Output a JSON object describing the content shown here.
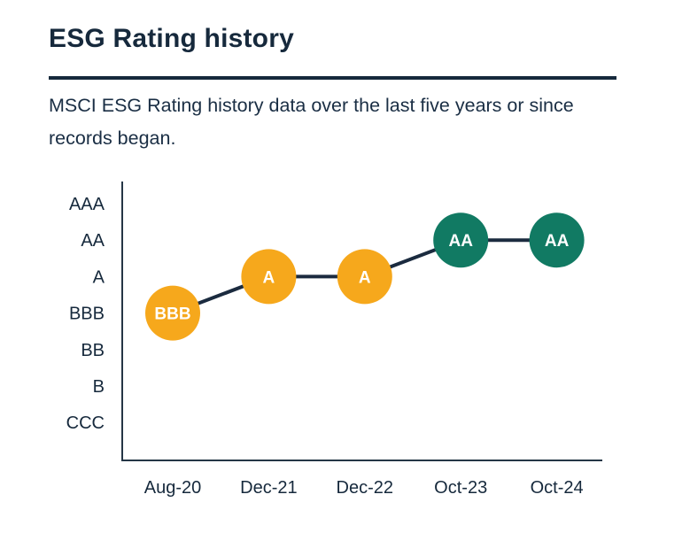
{
  "header": {
    "title": "ESG Rating history"
  },
  "subtitle": {
    "line1": "MSCI ESG Rating history data over the last five years or since",
    "line2": "records began.",
    "full_text": "MSCI ESG Rating history data over the last five years or since records began."
  },
  "colors": {
    "navy_text": "#16293C",
    "axis": "#253646",
    "line": "#1B2B3F",
    "yellow": "#F6A81C",
    "teal": "#117A63",
    "point_label": "#FFFFFF"
  },
  "chart_data": {
    "type": "line",
    "title": "",
    "xlabel": "",
    "ylabel": "",
    "grid": false,
    "legend": false,
    "categories": [
      "Aug-20",
      "Dec-21",
      "Dec-22",
      "Oct-23",
      "Oct-24"
    ],
    "y_categories_top_to_bottom": [
      "AAA",
      "AA",
      "A",
      "BBB",
      "BB",
      "B",
      "CCC"
    ],
    "series": [
      {
        "name": "MSCI ESG Rating",
        "values": [
          "BBB",
          "A",
          "A",
          "AA",
          "AA"
        ]
      }
    ],
    "points": [
      {
        "x": "Aug-20",
        "rating": "BBB",
        "color": "#F6A81C"
      },
      {
        "x": "Dec-21",
        "rating": "A",
        "color": "#F6A81C"
      },
      {
        "x": "Dec-22",
        "rating": "A",
        "color": "#F6A81C"
      },
      {
        "x": "Oct-23",
        "rating": "AA",
        "color": "#117A63"
      },
      {
        "x": "Oct-24",
        "rating": "AA",
        "color": "#117A63"
      }
    ],
    "line_color": "#1B2B3F",
    "axis_color": "#253646"
  }
}
